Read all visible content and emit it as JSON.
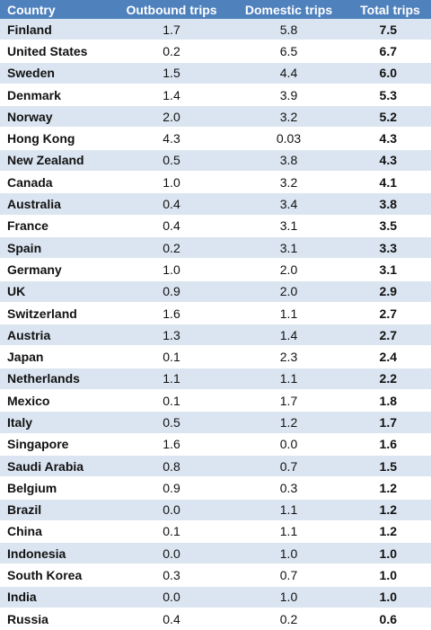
{
  "table": {
    "headers": [
      "Country",
      "Outbound trips",
      "Domestic trips",
      "Total trips"
    ],
    "rows": [
      [
        "Finland",
        "1.7",
        "5.8",
        "7.5"
      ],
      [
        "United States",
        "0.2",
        "6.5",
        "6.7"
      ],
      [
        "Sweden",
        "1.5",
        "4.4",
        "6.0"
      ],
      [
        "Denmark",
        "1.4",
        "3.9",
        "5.3"
      ],
      [
        "Norway",
        "2.0",
        "3.2",
        "5.2"
      ],
      [
        "Hong Kong",
        "4.3",
        "0.03",
        "4.3"
      ],
      [
        "New Zealand",
        "0.5",
        "3.8",
        "4.3"
      ],
      [
        "Canada",
        "1.0",
        "3.2",
        "4.1"
      ],
      [
        "Australia",
        "0.4",
        "3.4",
        "3.8"
      ],
      [
        "France",
        "0.4",
        "3.1",
        "3.5"
      ],
      [
        "Spain",
        "0.2",
        "3.1",
        "3.3"
      ],
      [
        "Germany",
        "1.0",
        "2.0",
        "3.1"
      ],
      [
        "UK",
        "0.9",
        "2.0",
        "2.9"
      ],
      [
        "Switzerland",
        "1.6",
        "1.1",
        "2.7"
      ],
      [
        "Austria",
        "1.3",
        "1.4",
        "2.7"
      ],
      [
        "Japan",
        "0.1",
        "2.3",
        "2.4"
      ],
      [
        "Netherlands",
        "1.1",
        "1.1",
        "2.2"
      ],
      [
        "Mexico",
        "0.1",
        "1.7",
        "1.8"
      ],
      [
        "Italy",
        "0.5",
        "1.2",
        "1.7"
      ],
      [
        "Singapore",
        "1.6",
        "0.0",
        "1.6"
      ],
      [
        "Saudi Arabia",
        "0.8",
        "0.7",
        "1.5"
      ],
      [
        "Belgium",
        "0.9",
        "0.3",
        "1.2"
      ],
      [
        "Brazil",
        "0.0",
        "1.1",
        "1.2"
      ],
      [
        "China",
        "0.1",
        "1.1",
        "1.2"
      ],
      [
        "Indonesia",
        "0.0",
        "1.0",
        "1.0"
      ],
      [
        "South Korea",
        "0.3",
        "0.7",
        "1.0"
      ],
      [
        "India",
        "0.0",
        "1.0",
        "1.0"
      ],
      [
        "Russia",
        "0.4",
        "0.2",
        "0.6"
      ]
    ]
  },
  "colors": {
    "header_bg": "#4f81bd",
    "header_text": "#ffffff",
    "row_band": "#dbe5f1",
    "row_plain": "#ffffff"
  }
}
